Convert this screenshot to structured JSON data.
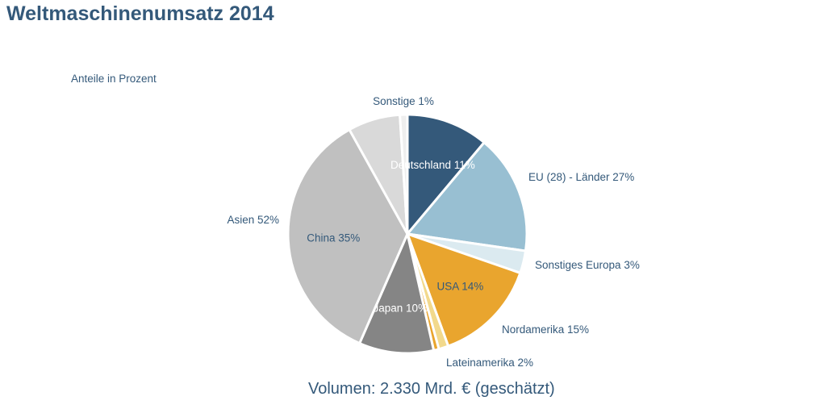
{
  "chart_data": {
    "type": "pie",
    "title": "Weltmaschinenumsatz 2014",
    "subtitle": "Anteile in Prozent",
    "footer": "Volumen: 2.330 Mrd. € (geschätzt)",
    "unit": "%",
    "slices": [
      {
        "label": "Deutschland 11%",
        "value": 11,
        "color": "#34597a",
        "label_color": "#ffffff"
      },
      {
        "label": "",
        "value": 16,
        "color": "#98bfd2"
      },
      {
        "label": "",
        "value": 3,
        "color": "#dbeaf0"
      },
      {
        "label": "USA 14%",
        "value": 14,
        "color": "#e9a52e",
        "label_color": "#34597a"
      },
      {
        "label": "",
        "value": 1.3,
        "color": "#f2d98c"
      },
      {
        "label": "",
        "value": 0.7,
        "color": "#e9a52e"
      },
      {
        "label": "Japan 10%",
        "value": 10,
        "color": "#858585",
        "label_color": "#ffffff"
      },
      {
        "label": "China 35%",
        "value": 35,
        "color": "#c0c0c0",
        "label_color": "#34597a"
      },
      {
        "label": "",
        "value": 7,
        "color": "#d9d9d9"
      },
      {
        "label": "",
        "value": 1,
        "color": "#eeeeee"
      }
    ],
    "group_labels": [
      {
        "name": "Sonstige 1%"
      },
      {
        "name": "EU (28) - Länder 27%"
      },
      {
        "name": "Sonstiges Europa 3%"
      },
      {
        "name": "Nordamerika 15%"
      },
      {
        "name": "Lateinamerika 2%"
      },
      {
        "name": "Asien 52%"
      }
    ]
  }
}
